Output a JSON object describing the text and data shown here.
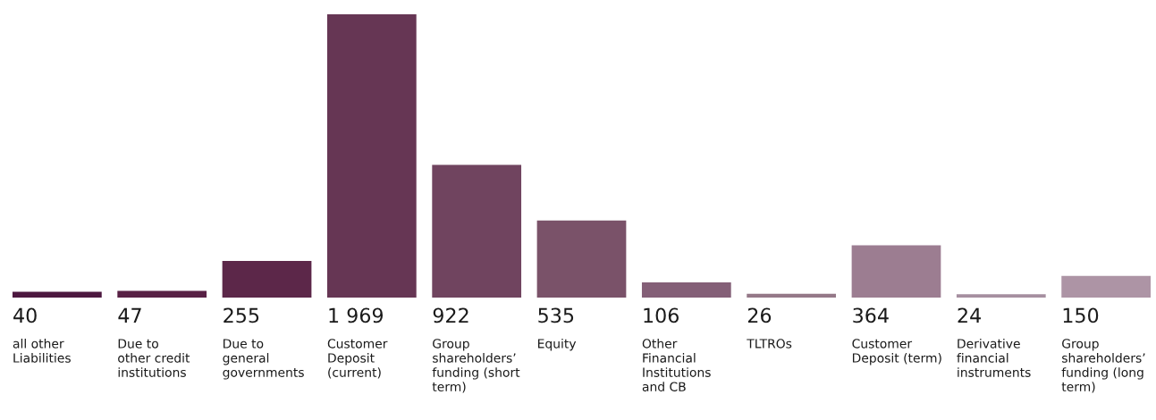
{
  "chart_data": {
    "type": "bar",
    "categories": [
      "all other\nLiabilities",
      "Due to\nother credit\ninstitutions",
      "Due to\ngeneral\ngovernments",
      "Customer\nDeposit\n(current)",
      "Group\nshareholders’\nfunding (short\nterm)",
      "Equity",
      "Other\nFinancial\nInstitutions\nand CB",
      "TLTROs",
      "Customer\nDeposit (term)",
      "Derivative\nfinancial\ninstruments",
      "Group\nshareholders’\nfunding (long\nterm)"
    ],
    "values": [
      40,
      47,
      255,
      1969,
      922,
      535,
      106,
      26,
      364,
      24,
      150
    ],
    "value_labels": [
      "40",
      "47",
      "255",
      "1 969",
      "922",
      "535",
      "106",
      "26",
      "364",
      "24",
      "150"
    ],
    "colors": [
      "#4d1840",
      "#582145",
      "#5c2749",
      "#663654",
      "#70445f",
      "#7a5269",
      "#845f77",
      "#957888",
      "#9c7d91",
      "#a68fa0",
      "#ad94a5"
    ],
    "data_labels": false
  }
}
